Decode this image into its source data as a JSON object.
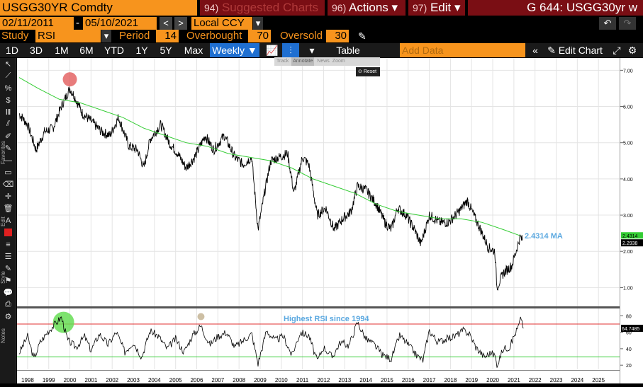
{
  "top_bar": {
    "security": "USGG30YR Comdty",
    "suggested_num": "94)",
    "suggested_label": "Suggested Charts",
    "actions_num": "96)",
    "actions_label": "Actions ▾",
    "edit_num": "97)",
    "edit_label": "Edit ▾",
    "window_title": "G 644: USGG30yr w"
  },
  "date_bar": {
    "start_date": "02/11/2011",
    "dash": "-",
    "end_date": "05/10/2021",
    "currency": "Local CCY"
  },
  "study_bar": {
    "study_label": "Study",
    "study_value": "RSI",
    "period_label": "Period",
    "period_value": "14",
    "overbought_label": "Overbought",
    "overbought_value": "70",
    "oversold_label": "Oversold",
    "oversold_value": "30"
  },
  "range_bar": {
    "ranges": [
      "1D",
      "3D",
      "1M",
      "6M",
      "YTD",
      "1Y",
      "5Y",
      "Max"
    ],
    "frequency": "Weekly ▼",
    "table_label": "Table",
    "add_data_placeholder": "Add Data",
    "edit_chart_label": "Edit Chart"
  },
  "floating_menu": {
    "track": "Track",
    "annotate": "Annotate",
    "news": "News",
    "zoom": "Zoom",
    "reset": "Reset"
  },
  "side_labels": {
    "favorites": "Favorites",
    "edit": "Edit",
    "style": "Style",
    "notes": "Notes"
  },
  "chart_data": [
    {
      "type": "line",
      "series": [
        {
          "name": "USGG30YR"
        },
        {
          "name": "MA"
        }
      ],
      "x_ticks": [
        "1998",
        "1999",
        "2000",
        "2001",
        "2002",
        "2003",
        "2004",
        "2005",
        "2006",
        "2007",
        "2008",
        "2009",
        "2010",
        "2011",
        "2012",
        "2013",
        "2014",
        "2015",
        "2016",
        "2017",
        "2018",
        "2019",
        "2020",
        "2021",
        "2022",
        "2023",
        "2024",
        "2025"
      ],
      "y_ticks": [
        "7.00",
        "6.00",
        "5.00",
        "4.00",
        "3.00",
        "2.00",
        "1.00"
      ],
      "ylim": [
        0.5,
        7.3
      ],
      "last_price": "2.2938",
      "ma_label": "2.4314 MA",
      "ma_axis_label": "2.4314",
      "price_points": [
        [
          1997.6,
          5.8
        ],
        [
          1998.0,
          5.5
        ],
        [
          1998.4,
          4.8
        ],
        [
          1998.8,
          5.3
        ],
        [
          1999.2,
          5.4
        ],
        [
          1999.6,
          6.0
        ],
        [
          2000.0,
          6.5
        ],
        [
          2000.2,
          6.3
        ],
        [
          2000.6,
          5.8
        ],
        [
          2001.0,
          5.6
        ],
        [
          2001.5,
          5.3
        ],
        [
          2001.9,
          5.2
        ],
        [
          2002.3,
          5.7
        ],
        [
          2002.8,
          4.9
        ],
        [
          2003.2,
          4.8
        ],
        [
          2003.5,
          4.3
        ],
        [
          2003.8,
          5.1
        ],
        [
          2004.3,
          5.5
        ],
        [
          2004.7,
          5.0
        ],
        [
          2005.1,
          4.7
        ],
        [
          2005.5,
          4.3
        ],
        [
          2005.9,
          4.6
        ],
        [
          2006.4,
          5.2
        ],
        [
          2006.8,
          4.8
        ],
        [
          2007.3,
          5.2
        ],
        [
          2007.8,
          4.6
        ],
        [
          2008.2,
          4.4
        ],
        [
          2008.6,
          4.6
        ],
        [
          2008.9,
          2.6
        ],
        [
          2009.2,
          3.6
        ],
        [
          2009.5,
          4.5
        ],
        [
          2009.9,
          4.6
        ],
        [
          2010.3,
          4.7
        ],
        [
          2010.6,
          3.6
        ],
        [
          2011.0,
          4.6
        ],
        [
          2011.3,
          4.4
        ],
        [
          2011.7,
          3.0
        ],
        [
          2012.1,
          3.2
        ],
        [
          2012.5,
          2.6
        ],
        [
          2012.9,
          2.9
        ],
        [
          2013.3,
          3.1
        ],
        [
          2013.6,
          3.8
        ],
        [
          2014.0,
          3.7
        ],
        [
          2014.5,
          3.3
        ],
        [
          2014.9,
          2.8
        ],
        [
          2015.2,
          2.6
        ],
        [
          2015.5,
          3.2
        ],
        [
          2015.9,
          3.0
        ],
        [
          2016.3,
          2.6
        ],
        [
          2016.6,
          2.2
        ],
        [
          2017.0,
          3.0
        ],
        [
          2017.5,
          2.8
        ],
        [
          2017.9,
          2.8
        ],
        [
          2018.4,
          3.1
        ],
        [
          2018.8,
          3.4
        ],
        [
          2019.1,
          3.0
        ],
        [
          2019.5,
          2.5
        ],
        [
          2019.8,
          2.1
        ],
        [
          2020.1,
          2.0
        ],
        [
          2020.2,
          1.0
        ],
        [
          2020.5,
          1.4
        ],
        [
          2020.9,
          1.6
        ],
        [
          2021.1,
          2.0
        ],
        [
          2021.3,
          2.4
        ],
        [
          2021.4,
          2.3
        ]
      ],
      "ma_points": [
        [
          1997.6,
          6.8
        ],
        [
          1998.5,
          6.5
        ],
        [
          1999.5,
          6.2
        ],
        [
          2000.5,
          6.1
        ],
        [
          2001.5,
          5.9
        ],
        [
          2002.5,
          5.7
        ],
        [
          2003.5,
          5.4
        ],
        [
          2004.5,
          5.2
        ],
        [
          2005.5,
          5.0
        ],
        [
          2006.5,
          4.9
        ],
        [
          2007.5,
          4.7
        ],
        [
          2008.5,
          4.6
        ],
        [
          2009.5,
          4.5
        ],
        [
          2010.5,
          4.3
        ],
        [
          2011.5,
          4.0
        ],
        [
          2012.5,
          3.8
        ],
        [
          2013.5,
          3.6
        ],
        [
          2014.5,
          3.3
        ],
        [
          2015.5,
          3.1
        ],
        [
          2016.5,
          3.0
        ],
        [
          2017.5,
          2.9
        ],
        [
          2018.5,
          2.9
        ],
        [
          2019.5,
          2.8
        ],
        [
          2020.5,
          2.6
        ],
        [
          2021.3,
          2.43
        ]
      ]
    },
    {
      "type": "line",
      "series": [
        {
          "name": "RSI"
        }
      ],
      "y_ticks": [
        "80",
        "60",
        "40",
        "20"
      ],
      "ylim": [
        15,
        88
      ],
      "overbought_line": 70,
      "oversold_line": 30,
      "last_value": "64.7485",
      "annotation": "Highest RSI since 1994",
      "rsi_points": [
        [
          1997.6,
          35
        ],
        [
          1998.0,
          55
        ],
        [
          1998.3,
          28
        ],
        [
          1998.6,
          48
        ],
        [
          1999.0,
          62
        ],
        [
          1999.3,
          70
        ],
        [
          1999.6,
          78
        ],
        [
          1999.9,
          50
        ],
        [
          2000.3,
          42
        ],
        [
          2000.7,
          55
        ],
        [
          2001.0,
          38
        ],
        [
          2001.4,
          58
        ],
        [
          2001.8,
          45
        ],
        [
          2002.2,
          60
        ],
        [
          2002.6,
          36
        ],
        [
          2003.0,
          48
        ],
        [
          2003.4,
          30
        ],
        [
          2003.8,
          62
        ],
        [
          2004.2,
          55
        ],
        [
          2004.6,
          40
        ],
        [
          2005.0,
          52
        ],
        [
          2005.4,
          36
        ],
        [
          2005.8,
          56
        ],
        [
          2006.2,
          68
        ],
        [
          2006.6,
          45
        ],
        [
          2007.0,
          55
        ],
        [
          2007.4,
          60
        ],
        [
          2007.8,
          42
        ],
        [
          2008.2,
          50
        ],
        [
          2008.6,
          58
        ],
        [
          2008.9,
          22
        ],
        [
          2009.3,
          62
        ],
        [
          2009.7,
          50
        ],
        [
          2010.1,
          55
        ],
        [
          2010.5,
          32
        ],
        [
          2010.9,
          60
        ],
        [
          2011.3,
          56
        ],
        [
          2011.7,
          25
        ],
        [
          2012.0,
          42
        ],
        [
          2012.4,
          30
        ],
        [
          2012.8,
          48
        ],
        [
          2013.2,
          44
        ],
        [
          2013.6,
          72
        ],
        [
          2014.0,
          52
        ],
        [
          2014.4,
          45
        ],
        [
          2014.8,
          32
        ],
        [
          2015.2,
          28
        ],
        [
          2015.6,
          56
        ],
        [
          2016.0,
          45
        ],
        [
          2016.4,
          32
        ],
        [
          2016.7,
          26
        ],
        [
          2017.0,
          62
        ],
        [
          2017.4,
          48
        ],
        [
          2017.8,
          52
        ],
        [
          2018.2,
          55
        ],
        [
          2018.6,
          62
        ],
        [
          2018.9,
          58
        ],
        [
          2019.2,
          42
        ],
        [
          2019.6,
          30
        ],
        [
          2019.9,
          35
        ],
        [
          2020.1,
          32
        ],
        [
          2020.2,
          20
        ],
        [
          2020.5,
          40
        ],
        [
          2020.8,
          42
        ],
        [
          2021.0,
          55
        ],
        [
          2021.2,
          66
        ],
        [
          2021.35,
          78
        ],
        [
          2021.45,
          64.7
        ]
      ]
    }
  ],
  "colors": {
    "price": "#000000",
    "ma": "#33cc33",
    "overbought": "#e03030",
    "oversold": "#33cc33",
    "annotation": "#5aa8e0",
    "circle_red": "#e05050",
    "circle_green": "#66dd55",
    "circle_tan": "#c8b89a"
  }
}
